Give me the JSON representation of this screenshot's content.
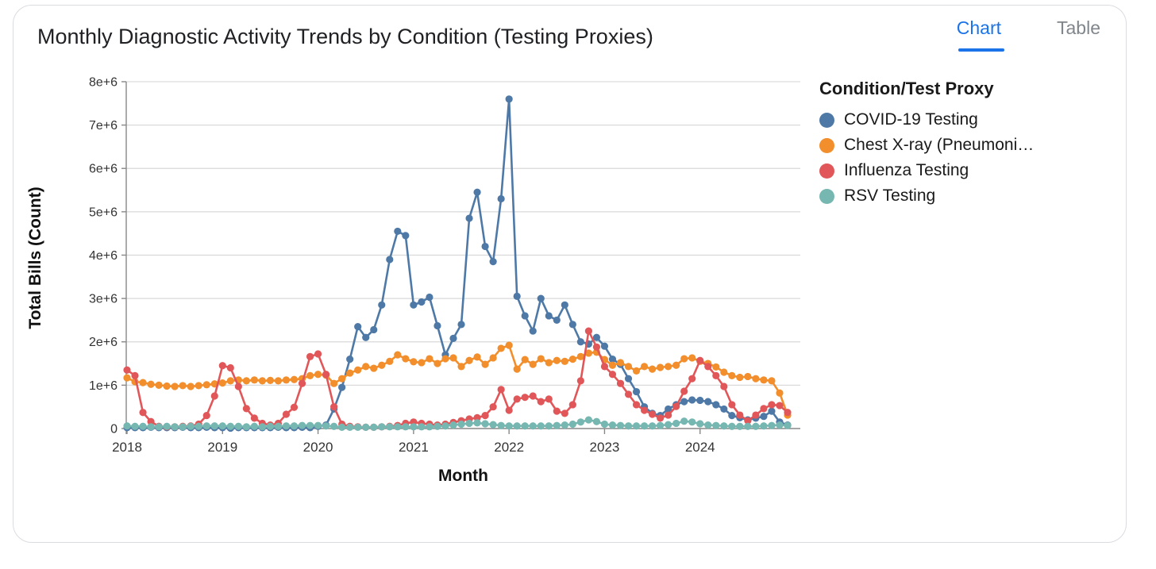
{
  "card": {
    "title": "Monthly Diagnostic Activity Trends by Condition (Testing Proxies)",
    "tabs": [
      {
        "label": "Chart",
        "active": true
      },
      {
        "label": "Table",
        "active": false
      }
    ]
  },
  "legend": {
    "title": "Condition/Test Proxy",
    "items": [
      {
        "label": "COVID-19 Testing",
        "color": "#4e79a7"
      },
      {
        "label": "Chest X-ray (Pneumoni…",
        "color": "#f28e2b"
      },
      {
        "label": "Influenza Testing",
        "color": "#e15759"
      },
      {
        "label": "RSV Testing",
        "color": "#76b7b2"
      }
    ]
  },
  "colors": {
    "tab_active": "#1a73e8",
    "tab_inactive": "#80868b",
    "grid_line": "#d9d9d9",
    "axis_line": "#888888",
    "tick_text": "#333333",
    "axis_title_text": "#111111",
    "card_border": "#dadce0"
  },
  "chart_data": {
    "type": "line",
    "title": "Monthly Diagnostic Activity Trends by Condition (Testing Proxies)",
    "xlabel": "Month",
    "ylabel": "Total Bills (Count)",
    "y_unit": "e+6 (millions of bills)",
    "ylim_millions": [
      0,
      8
    ],
    "y_tick_labels": [
      "0",
      "1e+6",
      "2e+6",
      "3e+6",
      "4e+6",
      "5e+6",
      "6e+6",
      "7e+6",
      "8e+6"
    ],
    "x_tick_labels": [
      "2018",
      "2019",
      "2020",
      "2021",
      "2022",
      "2023",
      "2024"
    ],
    "grid": "horizontal",
    "legend_position": "right",
    "markers": "circle",
    "x": [
      "2018-01",
      "2018-02",
      "2018-03",
      "2018-04",
      "2018-05",
      "2018-06",
      "2018-07",
      "2018-08",
      "2018-09",
      "2018-10",
      "2018-11",
      "2018-12",
      "2019-01",
      "2019-02",
      "2019-03",
      "2019-04",
      "2019-05",
      "2019-06",
      "2019-07",
      "2019-08",
      "2019-09",
      "2019-10",
      "2019-11",
      "2019-12",
      "2020-01",
      "2020-02",
      "2020-03",
      "2020-04",
      "2020-05",
      "2020-06",
      "2020-07",
      "2020-08",
      "2020-09",
      "2020-10",
      "2020-11",
      "2020-12",
      "2021-01",
      "2021-02",
      "2021-03",
      "2021-04",
      "2021-05",
      "2021-06",
      "2021-07",
      "2021-08",
      "2021-09",
      "2021-10",
      "2021-11",
      "2021-12",
      "2022-01",
      "2022-02",
      "2022-03",
      "2022-04",
      "2022-05",
      "2022-06",
      "2022-07",
      "2022-08",
      "2022-09",
      "2022-10",
      "2022-11",
      "2022-12",
      "2023-01",
      "2023-02",
      "2023-03",
      "2023-04",
      "2023-05",
      "2023-06",
      "2023-07",
      "2023-08",
      "2023-09",
      "2023-10",
      "2023-11",
      "2023-12",
      "2024-01",
      "2024-02",
      "2024-03",
      "2024-04",
      "2024-05",
      "2024-06",
      "2024-07",
      "2024-08",
      "2024-09",
      "2024-10",
      "2024-11",
      "2024-12"
    ],
    "series": [
      {
        "name": "COVID-19 Testing",
        "color": "#4e79a7",
        "values_millions": [
          0.02,
          0.02,
          0.02,
          0.03,
          0.02,
          0.02,
          0.02,
          0.03,
          0.02,
          0.02,
          0.03,
          0.02,
          0.02,
          0.01,
          0.02,
          0.02,
          0.02,
          0.02,
          0.02,
          0.03,
          0.02,
          0.02,
          0.03,
          0.02,
          0.05,
          0.08,
          0.45,
          0.95,
          1.6,
          2.35,
          2.1,
          2.28,
          2.85,
          3.9,
          4.55,
          4.45,
          2.85,
          2.92,
          3.03,
          2.37,
          1.7,
          2.08,
          2.4,
          4.85,
          5.45,
          4.2,
          3.85,
          5.3,
          7.6,
          3.05,
          2.6,
          2.25,
          3.0,
          2.6,
          2.5,
          2.85,
          2.4,
          2.0,
          1.95,
          2.1,
          1.9,
          1.6,
          1.48,
          1.15,
          0.85,
          0.5,
          0.35,
          0.3,
          0.45,
          0.55,
          0.62,
          0.66,
          0.65,
          0.62,
          0.55,
          0.45,
          0.3,
          0.25,
          0.2,
          0.24,
          0.28,
          0.4,
          0.15,
          0.08
        ]
      },
      {
        "name": "Chest X-ray (Pneumoni…",
        "color": "#f28e2b",
        "values_millions": [
          1.17,
          1.08,
          1.06,
          1.02,
          1.0,
          0.98,
          0.97,
          0.99,
          0.97,
          0.99,
          1.01,
          1.03,
          1.05,
          1.1,
          1.12,
          1.1,
          1.12,
          1.1,
          1.11,
          1.1,
          1.12,
          1.13,
          1.15,
          1.22,
          1.25,
          1.23,
          1.04,
          1.15,
          1.28,
          1.35,
          1.43,
          1.39,
          1.46,
          1.55,
          1.7,
          1.61,
          1.54,
          1.52,
          1.61,
          1.5,
          1.61,
          1.63,
          1.43,
          1.57,
          1.65,
          1.48,
          1.63,
          1.85,
          1.92,
          1.37,
          1.59,
          1.48,
          1.61,
          1.52,
          1.57,
          1.55,
          1.6,
          1.66,
          1.74,
          1.76,
          1.59,
          1.46,
          1.52,
          1.43,
          1.33,
          1.43,
          1.37,
          1.41,
          1.43,
          1.46,
          1.61,
          1.63,
          1.55,
          1.5,
          1.42,
          1.3,
          1.22,
          1.18,
          1.2,
          1.15,
          1.12,
          1.1,
          0.82,
          0.31
        ]
      },
      {
        "name": "Influenza Testing",
        "color": "#e15759",
        "values_millions": [
          1.35,
          1.22,
          0.37,
          0.16,
          0.05,
          0.04,
          0.04,
          0.05,
          0.06,
          0.1,
          0.3,
          0.75,
          1.45,
          1.4,
          0.97,
          0.46,
          0.24,
          0.12,
          0.08,
          0.12,
          0.33,
          0.49,
          1.04,
          1.66,
          1.72,
          1.25,
          0.5,
          0.1,
          0.05,
          0.04,
          0.03,
          0.03,
          0.04,
          0.05,
          0.07,
          0.12,
          0.15,
          0.12,
          0.1,
          0.08,
          0.1,
          0.14,
          0.18,
          0.22,
          0.25,
          0.3,
          0.5,
          0.9,
          0.42,
          0.68,
          0.72,
          0.75,
          0.62,
          0.68,
          0.4,
          0.35,
          0.55,
          1.1,
          2.25,
          1.88,
          1.43,
          1.25,
          1.04,
          0.79,
          0.55,
          0.42,
          0.33,
          0.24,
          0.31,
          0.51,
          0.86,
          1.15,
          1.57,
          1.43,
          1.22,
          0.97,
          0.55,
          0.31,
          0.18,
          0.31,
          0.46,
          0.55,
          0.53,
          0.37
        ]
      },
      {
        "name": "RSV Testing",
        "color": "#76b7b2",
        "values_millions": [
          0.06,
          0.05,
          0.05,
          0.04,
          0.04,
          0.05,
          0.04,
          0.04,
          0.05,
          0.05,
          0.06,
          0.06,
          0.06,
          0.05,
          0.05,
          0.04,
          0.05,
          0.04,
          0.05,
          0.05,
          0.06,
          0.06,
          0.07,
          0.07,
          0.07,
          0.06,
          0.05,
          0.03,
          0.03,
          0.03,
          0.03,
          0.03,
          0.04,
          0.04,
          0.04,
          0.04,
          0.04,
          0.04,
          0.04,
          0.05,
          0.06,
          0.08,
          0.1,
          0.12,
          0.13,
          0.11,
          0.09,
          0.07,
          0.06,
          0.06,
          0.06,
          0.06,
          0.06,
          0.06,
          0.07,
          0.08,
          0.1,
          0.15,
          0.2,
          0.16,
          0.1,
          0.08,
          0.07,
          0.06,
          0.06,
          0.06,
          0.06,
          0.07,
          0.09,
          0.12,
          0.17,
          0.15,
          0.11,
          0.08,
          0.07,
          0.06,
          0.05,
          0.05,
          0.05,
          0.05,
          0.06,
          0.07,
          0.08,
          0.07
        ]
      }
    ]
  }
}
